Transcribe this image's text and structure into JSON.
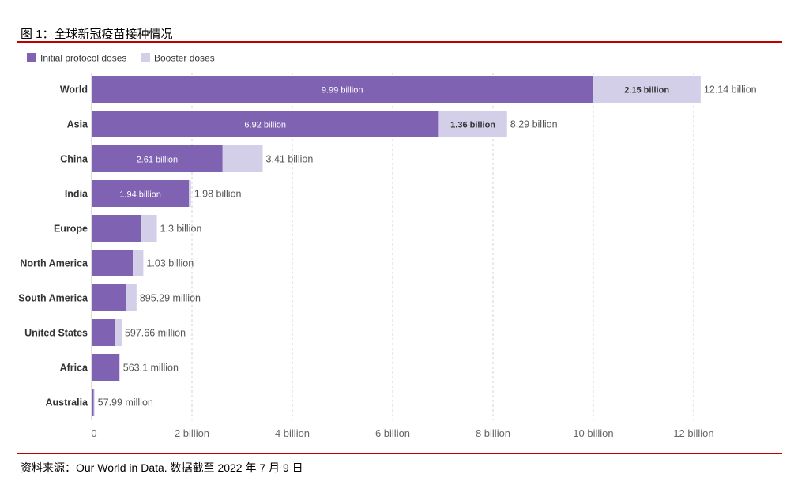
{
  "figure": {
    "title": "图 1：全球新冠疫苗接种情况",
    "source": "资料来源：Our World in Data. 数据截至 2022 年 7 月 9 日"
  },
  "colors": {
    "initial": "#7f62b2",
    "booster": "#d3cfe8",
    "rule": "#c00000",
    "grid": "#d0d0d0"
  },
  "chart_data": {
    "type": "bar",
    "orientation": "horizontal",
    "stacked": true,
    "title": "",
    "xlabel": "",
    "ylabel": "",
    "unit": "doses",
    "xlim": [
      0,
      12300000000
    ],
    "grid": "vertical dashed",
    "legend_position": "top-left",
    "legend": [
      {
        "name": "Initial protocol doses",
        "color": "#7f62b2"
      },
      {
        "name": "Booster doses",
        "color": "#d3cfe8"
      }
    ],
    "x_ticks": [
      {
        "value": 0,
        "label": "0"
      },
      {
        "value": 2000000000,
        "label": "2 billion"
      },
      {
        "value": 4000000000,
        "label": "4 billion"
      },
      {
        "value": 6000000000,
        "label": "6 billion"
      },
      {
        "value": 8000000000,
        "label": "8 billion"
      },
      {
        "value": 10000000000,
        "label": "10 billion"
      },
      {
        "value": 12000000000,
        "label": "12 billion"
      }
    ],
    "categories": [
      "World",
      "Asia",
      "China",
      "India",
      "Europe",
      "North America",
      "South America",
      "United States",
      "Africa",
      "Australia"
    ],
    "series": [
      {
        "name": "Initial protocol doses",
        "values": [
          9990000000,
          6920000000,
          2610000000,
          1940000000,
          990000000,
          820000000,
          680000000,
          470000000,
          540000000,
          40000000
        ],
        "labels": [
          "9.99 billion",
          "6.92 billion",
          "2.61 billion",
          "1.94 billion",
          "",
          "",
          "",
          "",
          "",
          ""
        ]
      },
      {
        "name": "Booster doses",
        "values": [
          2150000000,
          1360000000,
          800000000,
          40000000,
          310000000,
          210000000,
          215290000,
          127660000,
          23100000,
          17990000
        ],
        "labels": [
          "2.15 billion",
          "1.36 billion",
          "",
          "",
          "",
          "",
          "",
          "",
          "",
          ""
        ]
      }
    ],
    "totals": [
      12140000000,
      8290000000,
      3410000000,
      1980000000,
      1300000000,
      1030000000,
      895290000,
      597660000,
      563100000,
      57990000
    ],
    "total_labels": [
      "12.14 billion",
      "8.29 billion",
      "3.41 billion",
      "1.98 billion",
      "1.3 billion",
      "1.03 billion",
      "895.29 million",
      "597.66 million",
      "563.1 million",
      "57.99 million"
    ]
  }
}
